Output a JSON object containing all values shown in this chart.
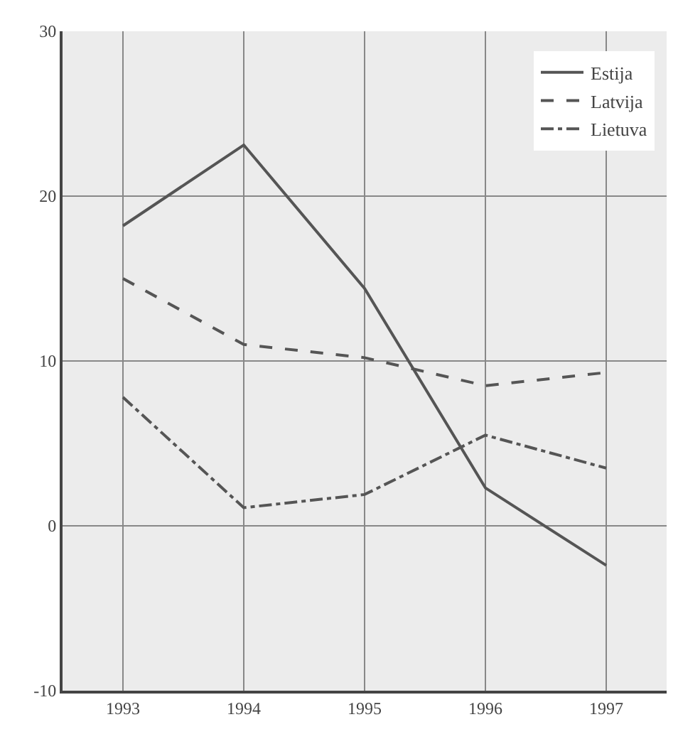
{
  "chart_data": {
    "type": "line",
    "categories": [
      "1993",
      "1994",
      "1995",
      "1996",
      "1997"
    ],
    "series": [
      {
        "name": "Estija",
        "color": "#555555",
        "line_style": "solid",
        "values": [
          18.2,
          23.1,
          14.4,
          2.3,
          -2.4
        ]
      },
      {
        "name": "Latvija",
        "color": "#555555",
        "line_style": "dashed",
        "values": [
          15.0,
          11.0,
          10.2,
          8.5,
          9.3
        ]
      },
      {
        "name": "Lietuva",
        "color": "#555555",
        "line_style": "dashdot",
        "values": [
          7.8,
          1.1,
          1.9,
          5.5,
          3.5
        ]
      }
    ],
    "ylim": [
      -10,
      30
    ],
    "yticks": [
      -10,
      0,
      10,
      20,
      30
    ],
    "grid": true,
    "legend": "top right",
    "marker": "none"
  }
}
